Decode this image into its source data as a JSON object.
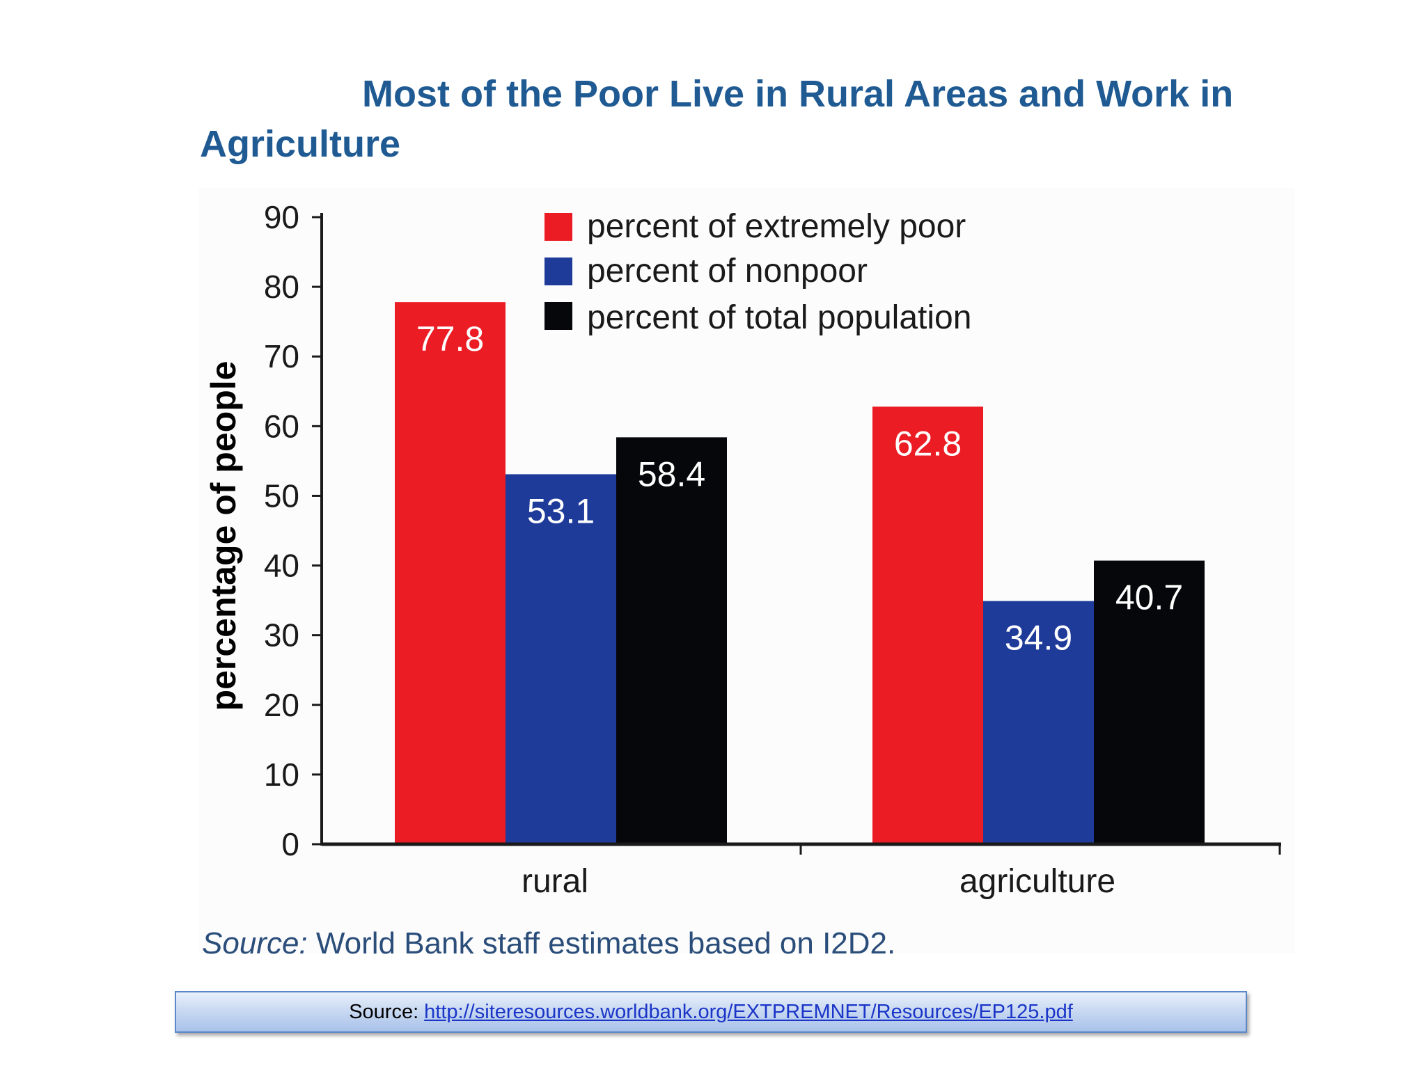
{
  "chart_data": {
    "type": "bar",
    "title_line1": "Most of the Poor Live in Rural Areas and Work in",
    "title_line2": "Agriculture",
    "ylabel": "percentage of people",
    "xlabel": "",
    "ylim": [
      0,
      90
    ],
    "yticks": [
      "0",
      "10",
      "20",
      "30",
      "40",
      "50",
      "60",
      "70",
      "80",
      "90"
    ],
    "categories": [
      "rural",
      "agriculture"
    ],
    "series": [
      {
        "name": "percent of extremely poor",
        "color": "#ec1c24",
        "values": [
          77.8,
          62.8
        ],
        "labels": [
          "77.8",
          "62.8"
        ]
      },
      {
        "name": "percent of nonpoor",
        "color": "#1f3b9a",
        "values": [
          53.1,
          34.9
        ],
        "labels": [
          "53.1",
          "34.9"
        ]
      },
      {
        "name": "percent of total population",
        "color": "#06070a",
        "values": [
          58.4,
          40.7
        ],
        "labels": [
          "58.4",
          "40.7"
        ]
      }
    ],
    "legend_position": "top-center",
    "grid": false,
    "note_italic": "Source:",
    "note_text": " World Bank staff estimates based on I2D2."
  },
  "footer": {
    "source_label": "Source:",
    "source_link": "http://siteresources.worldbank.org/EXTPREMNET/Resources/EP125.pdf"
  }
}
